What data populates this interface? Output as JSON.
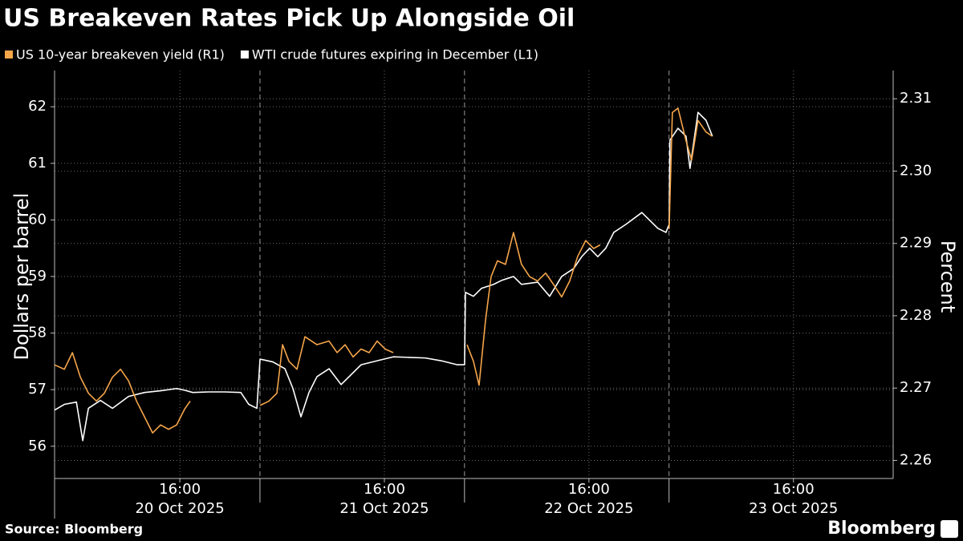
{
  "chart_data": {
    "type": "line",
    "title": "US Breakeven Rates Pick Up Alongside Oil",
    "ylabel": "Dollars per barrel",
    "y2label": "Percent",
    "source": "Source: Bloomberg",
    "brand": "Bloomberg",
    "xlim": [
      1.3,
      99.7
    ],
    "xticks": [
      {
        "value": 16,
        "label": "16:00"
      },
      {
        "value": 40,
        "label": "16:00"
      },
      {
        "value": 64,
        "label": "16:00"
      },
      {
        "value": 88,
        "label": "16:00"
      }
    ],
    "x_day_labels": [
      {
        "value": 16,
        "label": "20 Oct 2025"
      },
      {
        "value": 40,
        "label": "21 Oct 2025"
      },
      {
        "value": 64,
        "label": "22 Oct 2025"
      },
      {
        "value": 88,
        "label": "23 Oct 2025"
      }
    ],
    "day_breaks": [
      25.4,
      49.4,
      73.4
    ],
    "ylim": [
      55.43,
      62.64
    ],
    "yticks": [
      56,
      57,
      58,
      59,
      60,
      61,
      62
    ],
    "y2lim": [
      2.2575,
      2.3139
    ],
    "y2ticks": [
      2.26,
      2.27,
      2.28,
      2.29,
      {
        "value": 2.3,
        "label": "2.30"
      },
      2.31
    ],
    "grid": true,
    "legend": "top-left",
    "series": [
      {
        "name": "WTI crude futures expiring in December (L1)",
        "color": "#ffffff",
        "axis": "y",
        "x": [
          1.32,
          2.45,
          3.86,
          4.61,
          5.27,
          6.68,
          8.09,
          9.98,
          11.86,
          13.74,
          15.62,
          16.56,
          17.51,
          19.39,
          21.27,
          23.15,
          24.09,
          25.04,
          25.41,
          26.92,
          28.33,
          29.27,
          30.21,
          31.15,
          32.09,
          33.51,
          34.92,
          35.86,
          37.27,
          39.15,
          41.04,
          42.92,
          44.8,
          46.68,
          48.56,
          49.41,
          49.51,
          50.45,
          51.39,
          52.8,
          53.74,
          55.15,
          56.09,
          57.98,
          59.39,
          60.8,
          62.21,
          63.15,
          64.09,
          65.04,
          65.98,
          66.92,
          68.33,
          70.21,
          71.15,
          72.09,
          73.04,
          73.41,
          73.51,
          74.45,
          75.39,
          75.86,
          76.8,
          77.74,
          78.49
        ],
        "values": [
          56.64,
          56.74,
          56.78,
          56.1,
          56.67,
          56.81,
          56.67,
          56.88,
          56.95,
          56.98,
          57.02,
          56.99,
          56.95,
          56.96,
          56.96,
          56.95,
          56.74,
          56.67,
          57.54,
          57.49,
          57.37,
          57.02,
          56.52,
          56.95,
          57.23,
          57.37,
          57.09,
          57.23,
          57.44,
          57.51,
          57.58,
          57.57,
          57.56,
          57.51,
          57.44,
          57.44,
          58.72,
          58.65,
          58.79,
          58.86,
          58.93,
          59.0,
          58.86,
          58.9,
          58.65,
          59.0,
          59.14,
          59.35,
          59.5,
          59.35,
          59.5,
          59.78,
          59.92,
          60.13,
          59.99,
          59.85,
          59.78,
          59.92,
          61.41,
          61.62,
          61.48,
          60.91,
          61.9,
          61.76,
          61.48
        ]
      },
      {
        "name": "US 10-year breakeven yield (R1)",
        "color": "#f5a54a",
        "axis": "y2",
        "x": [
          1.32,
          2.45,
          3.39,
          4.33,
          5.27,
          6.21,
          7.15,
          8.09,
          9.04,
          9.98,
          10.92,
          11.86,
          12.8,
          13.74,
          14.68,
          15.62,
          16.56,
          17.22,
          20,
          25.41,
          26.45,
          27.39,
          28.05,
          28.8,
          29.74,
          30.68,
          32.09,
          33.51,
          34.45,
          35.39,
          36.33,
          37.27,
          38.21,
          39.15,
          40.09,
          41.04,
          45,
          49.69,
          50.45,
          51.11,
          51.86,
          52.52,
          53.27,
          54.21,
          55.15,
          56.09,
          57.04,
          57.98,
          58.92,
          59.86,
          60.8,
          61.74,
          62.68,
          63.62,
          64.56,
          65.32,
          70,
          73.41,
          73.79,
          74.45,
          75.39,
          76.05,
          76.8,
          77.74,
          78.49
        ],
        "values": [
          2.2732,
          2.2726,
          2.2749,
          2.2715,
          2.2693,
          2.2682,
          2.2693,
          2.2715,
          2.2726,
          2.271,
          2.2682,
          2.266,
          2.2638,
          2.2649,
          2.2643,
          2.2649,
          2.2671,
          2.2682,
          null,
          2.2676,
          2.2682,
          2.2693,
          2.276,
          2.2737,
          2.2726,
          2.2771,
          2.276,
          2.2765,
          2.2749,
          2.276,
          2.2743,
          2.2754,
          2.2749,
          2.2765,
          2.2754,
          2.2749,
          null,
          2.276,
          2.2737,
          2.2704,
          2.2793,
          2.2854,
          2.2876,
          2.2871,
          2.2915,
          2.2871,
          2.2854,
          2.2848,
          2.2859,
          2.2843,
          2.2826,
          2.2848,
          2.2882,
          2.2904,
          2.2893,
          2.2898,
          null,
          2.292,
          2.3081,
          2.3087,
          2.3042,
          2.3015,
          2.307,
          2.3054,
          2.3048
        ]
      }
    ]
  }
}
